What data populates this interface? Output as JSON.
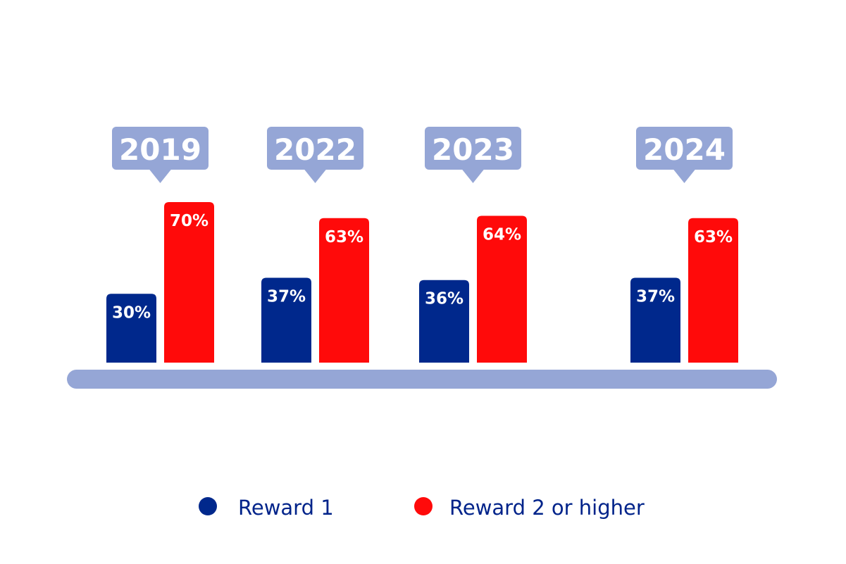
{
  "chart_data": {
    "type": "bar",
    "categories": [
      "2019",
      "2022",
      "2023",
      "2024"
    ],
    "series": [
      {
        "name": "Reward 1",
        "values": [
          30,
          37,
          36,
          37
        ],
        "labels": [
          "30%",
          "37%",
          "36%",
          "37%"
        ]
      },
      {
        "name": "Reward 2 or higher",
        "values": [
          70,
          63,
          64,
          63
        ],
        "labels": [
          "70%",
          "63%",
          "64%",
          "63%"
        ]
      }
    ],
    "unit": "%",
    "ylim": [
      0,
      100
    ],
    "grid": false,
    "legend_position": "bottom",
    "colors": {
      "reward_1": "#00288c",
      "reward_2_or_higher": "#ff0a0a",
      "year_badge": "#95a6d6",
      "baseline": "#95a6d6",
      "legend_text": "#00238a"
    }
  },
  "legend": {
    "items": [
      {
        "label": "Reward 1",
        "color": "#00288c"
      },
      {
        "label": "Reward 2 or higher",
        "color": "#ff0a0a"
      }
    ]
  }
}
